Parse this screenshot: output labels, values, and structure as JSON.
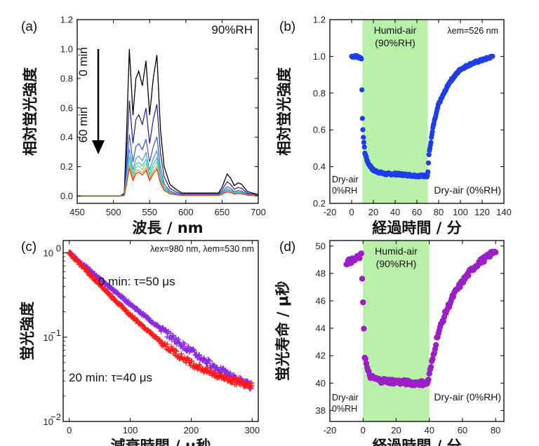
{
  "chart_data": [
    {
      "panel": "(a)",
      "type": "line",
      "xlabel": "波長 / nm",
      "ylabel": "相対蛍光強度",
      "xlim": [
        450,
        700
      ],
      "ylim": [
        -0.05,
        1.2
      ],
      "xticks": [
        450,
        500,
        550,
        600,
        650,
        700
      ],
      "yticks": [
        0.0,
        0.2,
        0.4,
        0.6,
        0.8,
        1.0,
        1.2
      ],
      "annotations": {
        "condition": "90%RH",
        "start": "0 min",
        "end": "60 min"
      },
      "series_colors": [
        "#000000",
        "#1a1aa0",
        "#3355dd",
        "#3a9ad8",
        "#2ec4c4",
        "#7ad38a",
        "#e8a030",
        "#e03010"
      ],
      "series_scale": [
        1.0,
        0.65,
        0.42,
        0.32,
        0.27,
        0.24,
        0.21,
        0.19
      ],
      "series_label_values": [
        [
          450,
          0
        ],
        [
          510,
          0
        ],
        [
          515,
          0.02
        ],
        [
          518,
          0.4
        ],
        [
          522,
          1.0
        ],
        [
          527,
          0.55
        ],
        [
          531,
          0.8
        ],
        [
          535,
          0.85
        ],
        [
          540,
          0.75
        ],
        [
          545,
          0.92
        ],
        [
          550,
          0.55
        ],
        [
          555,
          0.8
        ],
        [
          560,
          0.96
        ],
        [
          565,
          0.45
        ],
        [
          570,
          0.2
        ],
        [
          578,
          0.08
        ],
        [
          585,
          0.05
        ],
        [
          595,
          0.02
        ],
        [
          645,
          0.02
        ],
        [
          650,
          0.06
        ],
        [
          657,
          0.15
        ],
        [
          662,
          0.12
        ],
        [
          667,
          0.07
        ],
        [
          672,
          0.09
        ],
        [
          677,
          0.08
        ],
        [
          685,
          0.03
        ],
        [
          700,
          0.01
        ]
      ]
    },
    {
      "panel": "(b)",
      "type": "scatter",
      "xlabel": "経過時間 / 分",
      "ylabel": "相対蛍光強度",
      "xlim": [
        -20,
        140
      ],
      "ylim": [
        0.2,
        1.2
      ],
      "xticks": [
        -20,
        0,
        20,
        40,
        60,
        80,
        100,
        120,
        140
      ],
      "yticks": [
        0.2,
        0.4,
        0.6,
        0.8,
        1.0,
        1.2
      ],
      "shaded_region": [
        10,
        70
      ],
      "color": "#1f3ee8",
      "annotations": {
        "region": "Humid-air",
        "region_rh": "(90%RH)",
        "lambda": "λem=526 nm",
        "left1": "Dry-air",
        "left2": "0%RH",
        "right": "Dry-air (0%RH)"
      },
      "points": [
        [
          0,
          1.0
        ],
        [
          5,
          1.0
        ],
        [
          9,
          0.99
        ],
        [
          10,
          0.62
        ],
        [
          12,
          0.48
        ],
        [
          15,
          0.42
        ],
        [
          20,
          0.38
        ],
        [
          30,
          0.36
        ],
        [
          40,
          0.36
        ],
        [
          50,
          0.355
        ],
        [
          60,
          0.35
        ],
        [
          70,
          0.35
        ],
        [
          71,
          0.46
        ],
        [
          75,
          0.62
        ],
        [
          80,
          0.74
        ],
        [
          90,
          0.86
        ],
        [
          100,
          0.93
        ],
        [
          110,
          0.96
        ],
        [
          120,
          0.98
        ],
        [
          130,
          1.0
        ]
      ]
    },
    {
      "panel": "(c)",
      "type": "scatter",
      "xlabel": "減衰時間 / μ秒",
      "ylabel": "蛍光強度",
      "xlim": [
        -10,
        310
      ],
      "ylim_log": [
        0.01,
        1.4
      ],
      "xticks": [
        0,
        100,
        200,
        300
      ],
      "yticks": [
        "10^0",
        "10^-1",
        "10^-2"
      ],
      "annotations": {
        "lambda": "λex=980 nm, λem=530 nm"
      },
      "series": [
        {
          "name": "0 min: τ=50 μs",
          "color": "#8a2be2",
          "tau": 50,
          "baseline": 0.013
        },
        {
          "name": "20 min: τ=40 μs",
          "color": "#ff1a1a",
          "tau": 40,
          "baseline": 0.023
        }
      ]
    },
    {
      "panel": "(d)",
      "type": "scatter",
      "xlabel": "経過時間 / 分",
      "ylabel": "蛍光寿命 / μ秒",
      "xlim": [
        -20,
        85
      ],
      "ylim": [
        37.2,
        50.4
      ],
      "xticks": [
        -20,
        0,
        20,
        40,
        60,
        80
      ],
      "yticks": [
        38,
        40,
        42,
        44,
        46,
        48,
        50
      ],
      "shaded_region": [
        0,
        40
      ],
      "color": "#9b1fc7",
      "annotations": {
        "region": "Humid-air",
        "region_rh": "(90%RH)",
        "left1": "Dry-air",
        "left2": "0%RH",
        "right": "Dry-air (0%RH)"
      },
      "points": [
        [
          -10,
          48.8
        ],
        [
          -5,
          49.0
        ],
        [
          -1,
          49.3
        ],
        [
          0,
          46.0
        ],
        [
          1,
          42.0
        ],
        [
          3,
          40.8
        ],
        [
          5,
          40.4
        ],
        [
          10,
          40.2
        ],
        [
          20,
          40.1
        ],
        [
          30,
          40.0
        ],
        [
          39,
          40.0
        ],
        [
          40,
          40.6
        ],
        [
          45,
          43.5
        ],
        [
          50,
          45.2
        ],
        [
          55,
          46.5
        ],
        [
          60,
          47.4
        ],
        [
          65,
          48.2
        ],
        [
          70,
          48.8
        ],
        [
          75,
          49.2
        ],
        [
          80,
          49.7
        ]
      ]
    }
  ]
}
